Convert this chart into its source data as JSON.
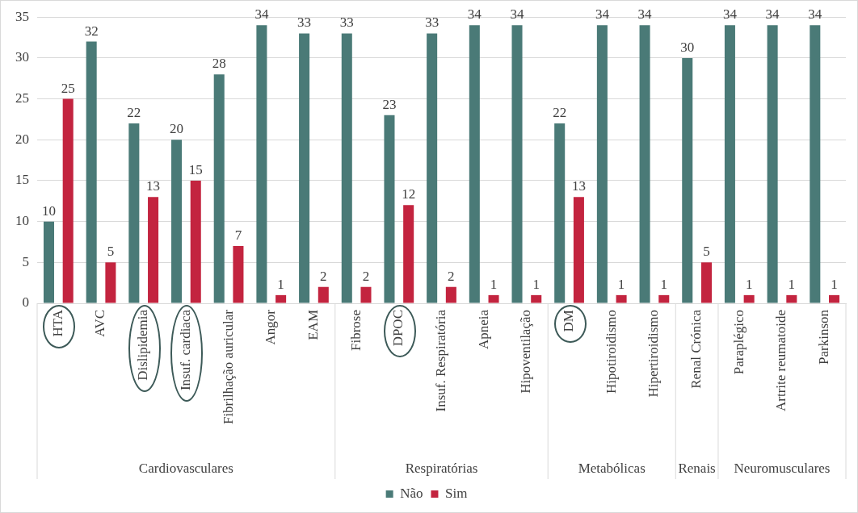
{
  "chart_data": {
    "type": "bar",
    "categories": [
      "HTA",
      "AVC",
      "Dislipidemia",
      "Insuf. cardiaca",
      "Fibrilhação auricular",
      "Angor",
      "EAM",
      "Fibrose",
      "DPOC",
      "Insuf. Respiratória",
      "Apneia",
      "Hipoventilação",
      "DM",
      "Hipotiroidismo",
      "Hipertiroidismo",
      "Renal Crónica",
      "Paraplégico",
      "Artrite reumatoide",
      "Parkinson"
    ],
    "series": [
      {
        "name": "Não",
        "color": "#4a7a77",
        "values": [
          10,
          32,
          22,
          20,
          28,
          34,
          33,
          33,
          23,
          33,
          34,
          34,
          22,
          34,
          34,
          30,
          34,
          34,
          34
        ]
      },
      {
        "name": "Sim",
        "color": "#c3243f",
        "values": [
          25,
          5,
          13,
          15,
          7,
          1,
          2,
          2,
          12,
          2,
          1,
          1,
          13,
          1,
          1,
          5,
          1,
          1,
          1
        ]
      }
    ],
    "ylim": [
      0,
      35
    ],
    "yticks": [
      0,
      5,
      10,
      15,
      20,
      25,
      30,
      35
    ],
    "grid": "y",
    "legend": "bottom",
    "data_labels": true,
    "annotations": [
      "Cardiovasculares",
      "Respiratórias",
      "Metabólicas",
      "Renais",
      "Neuromusculares"
    ]
  }
}
